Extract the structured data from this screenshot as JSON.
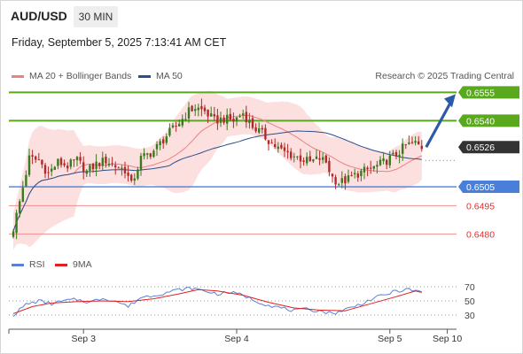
{
  "header": {
    "symbol": "AUD/USD",
    "timeframe": "30 MIN",
    "timestamp": "Friday, September 5, 2025 7:13:41 AM CET"
  },
  "legend": {
    "ma20_label": "MA 20 + Bollinger Bands",
    "ma50_label": "MA 50",
    "credit": "Research © 2025 Trading Central",
    "rsi_label": "RSI",
    "ma9_label": "9MA"
  },
  "colors": {
    "resistance": "#5aa81e",
    "support": "#4a7fd9",
    "minor_support": "#f08f8f",
    "bollinger_fill": "#fcd9d9",
    "ma20": "#f08080",
    "ma50": "#2b4f8c",
    "candle_up": "#3a7a1e",
    "candle_down": "#b02a2a",
    "rsi": "#5b7fd6",
    "rsi_ma": "#e02020",
    "current_price_bg": "#333333",
    "arrow": "#2b5aa6"
  },
  "chart_data": {
    "type": "candlestick",
    "y_range": [
      0.6475,
      0.6558
    ],
    "x_ticks": [
      {
        "label": "Sep 3",
        "index": 22
      },
      {
        "label": "Sep 4",
        "index": 70
      },
      {
        "label": "Sep 5",
        "index": 118
      },
      {
        "label": "Sep 10",
        "index": 136
      }
    ],
    "levels": [
      {
        "label": "0.6555",
        "value": 0.6555,
        "kind": "resistance"
      },
      {
        "label": "0.6540",
        "value": 0.654,
        "kind": "resistance"
      },
      {
        "label": "0.6526",
        "value": 0.6526,
        "kind": "current"
      },
      {
        "label": "0.6505",
        "value": 0.6505,
        "kind": "support"
      },
      {
        "label": "0.6495",
        "value": 0.6495,
        "kind": "minor_support"
      },
      {
        "label": "0.6480",
        "value": 0.648,
        "kind": "minor_support"
      }
    ],
    "current_price": 0.6526,
    "forecast_target": 0.6555,
    "close_anchors": [
      [
        0,
        0.6483
      ],
      [
        2,
        0.6497
      ],
      [
        5,
        0.652
      ],
      [
        8,
        0.6519
      ],
      [
        11,
        0.6512
      ],
      [
        14,
        0.6518
      ],
      [
        17,
        0.6516
      ],
      [
        20,
        0.6519
      ],
      [
        23,
        0.6513
      ],
      [
        26,
        0.6517
      ],
      [
        29,
        0.6519
      ],
      [
        32,
        0.6516
      ],
      [
        35,
        0.6514
      ],
      [
        37,
        0.6506
      ],
      [
        40,
        0.652
      ],
      [
        44,
        0.6524
      ],
      [
        48,
        0.6532
      ],
      [
        52,
        0.6539
      ],
      [
        55,
        0.6545
      ],
      [
        57,
        0.6547
      ],
      [
        60,
        0.6545
      ],
      [
        63,
        0.654
      ],
      [
        66,
        0.6541
      ],
      [
        69,
        0.654
      ],
      [
        72,
        0.6544
      ],
      [
        75,
        0.6537
      ],
      [
        78,
        0.6533
      ],
      [
        81,
        0.6528
      ],
      [
        84,
        0.6524
      ],
      [
        87,
        0.6522
      ],
      [
        90,
        0.652
      ],
      [
        93,
        0.6518
      ],
      [
        96,
        0.652
      ],
      [
        98,
        0.6518
      ],
      [
        100,
        0.651
      ],
      [
        102,
        0.6507
      ],
      [
        105,
        0.6509
      ],
      [
        108,
        0.6512
      ],
      [
        111,
        0.6514
      ],
      [
        114,
        0.6516
      ],
      [
        117,
        0.6519
      ],
      [
        120,
        0.6522
      ],
      [
        123,
        0.6527
      ],
      [
        126,
        0.6528
      ],
      [
        128,
        0.6526
      ]
    ],
    "rsi_range": [
      20,
      80
    ],
    "rsi_ticks": [
      70,
      50,
      30
    ],
    "rsi_anchors": [
      [
        0,
        30
      ],
      [
        4,
        45
      ],
      [
        8,
        50
      ],
      [
        12,
        46
      ],
      [
        16,
        50
      ],
      [
        20,
        52
      ],
      [
        24,
        48
      ],
      [
        28,
        54
      ],
      [
        32,
        50
      ],
      [
        36,
        42
      ],
      [
        40,
        55
      ],
      [
        44,
        58
      ],
      [
        48,
        62
      ],
      [
        52,
        66
      ],
      [
        56,
        68
      ],
      [
        60,
        64
      ],
      [
        64,
        60
      ],
      [
        68,
        62
      ],
      [
        72,
        58
      ],
      [
        76,
        50
      ],
      [
        80,
        44
      ],
      [
        84,
        40
      ],
      [
        88,
        36
      ],
      [
        92,
        38
      ],
      [
        96,
        36
      ],
      [
        100,
        32
      ],
      [
        104,
        38
      ],
      [
        108,
        44
      ],
      [
        112,
        52
      ],
      [
        116,
        58
      ],
      [
        120,
        64
      ],
      [
        124,
        66
      ],
      [
        128,
        62
      ]
    ],
    "rsi_ma_anchors": [
      [
        0,
        32
      ],
      [
        6,
        42
      ],
      [
        12,
        47
      ],
      [
        20,
        49
      ],
      [
        28,
        50
      ],
      [
        36,
        49
      ],
      [
        44,
        53
      ],
      [
        52,
        60
      ],
      [
        58,
        66
      ],
      [
        64,
        64
      ],
      [
        72,
        58
      ],
      [
        80,
        48
      ],
      [
        88,
        40
      ],
      [
        96,
        37
      ],
      [
        104,
        36
      ],
      [
        112,
        46
      ],
      [
        120,
        56
      ],
      [
        126,
        64
      ],
      [
        128,
        62
      ]
    ]
  }
}
